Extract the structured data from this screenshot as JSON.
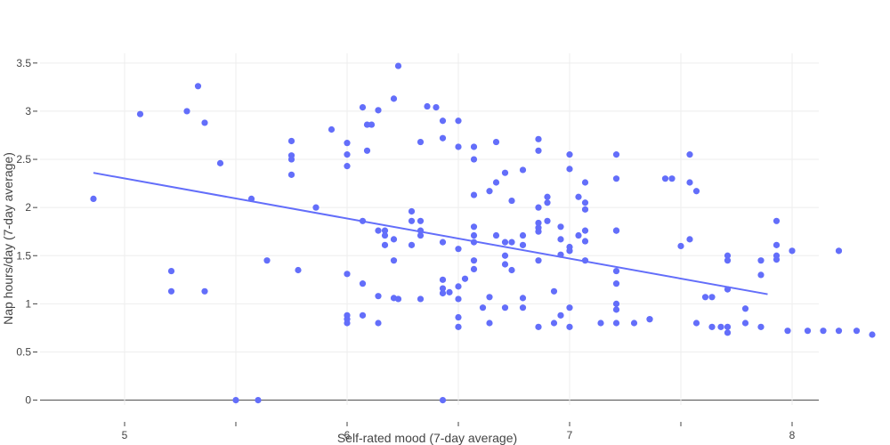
{
  "chart_data": {
    "type": "scatter",
    "title": "",
    "xlabel": "Self-rated mood (7-day average)",
    "ylabel": "Nap hours/day (7-day average)",
    "xlim": [
      4.62,
      8.12
    ],
    "ylim": [
      -0.05,
      3.6
    ],
    "grid": true,
    "legend": "none",
    "colors": {
      "points": "#636efa",
      "trend": "#636efa",
      "grid": "#eeeeee",
      "zero_line": "#444444",
      "text": "#444444"
    },
    "x_tick_labels": [
      {
        "value": 5,
        "label": "5"
      },
      {
        "value": 5.5,
        "label": ""
      },
      {
        "value": 6,
        "label": "6"
      },
      {
        "value": 6.5,
        "label": ""
      },
      {
        "value": 7,
        "label": "7"
      },
      {
        "value": 7.5,
        "label": ""
      },
      {
        "value": 8,
        "label": "8"
      }
    ],
    "y_tick_labels": [
      {
        "value": 0,
        "label": "0"
      },
      {
        "value": 0.5,
        "label": "0.5"
      },
      {
        "value": 1,
        "label": "1"
      },
      {
        "value": 1.5,
        "label": "1.5"
      },
      {
        "value": 2,
        "label": "2"
      },
      {
        "value": 2.5,
        "label": "2.5"
      },
      {
        "value": 3,
        "label": "3"
      },
      {
        "value": 3.5,
        "label": "3.5"
      }
    ],
    "trendline": {
      "x": [
        4.86,
        7.89
      ],
      "y": [
        2.36,
        1.1
      ]
    },
    "points": [
      [
        4.86,
        2.09
      ],
      [
        5.07,
        2.97
      ],
      [
        5.21,
        1.34
      ],
      [
        5.21,
        1.13
      ],
      [
        5.28,
        3.0
      ],
      [
        5.33,
        3.26
      ],
      [
        5.36,
        2.88
      ],
      [
        5.36,
        1.13
      ],
      [
        5.43,
        2.46
      ],
      [
        5.5,
        0.0
      ],
      [
        5.57,
        2.09
      ],
      [
        5.6,
        0.0
      ],
      [
        5.64,
        1.45
      ],
      [
        5.75,
        2.69
      ],
      [
        5.75,
        2.54
      ],
      [
        5.75,
        2.5
      ],
      [
        5.75,
        2.34
      ],
      [
        5.78,
        1.35
      ],
      [
        5.86,
        2.0
      ],
      [
        5.93,
        2.81
      ],
      [
        6.0,
        2.67
      ],
      [
        6.0,
        2.55
      ],
      [
        6.0,
        2.43
      ],
      [
        6.0,
        1.31
      ],
      [
        6.0,
        0.88
      ],
      [
        6.0,
        0.84
      ],
      [
        6.0,
        0.8
      ],
      [
        6.07,
        3.04
      ],
      [
        6.07,
        1.86
      ],
      [
        6.07,
        1.21
      ],
      [
        6.07,
        0.88
      ],
      [
        6.09,
        2.59
      ],
      [
        6.09,
        2.86
      ],
      [
        6.11,
        2.86
      ],
      [
        6.14,
        3.01
      ],
      [
        6.14,
        1.76
      ],
      [
        6.14,
        1.08
      ],
      [
        6.14,
        0.8
      ],
      [
        6.17,
        1.76
      ],
      [
        6.17,
        1.71
      ],
      [
        6.17,
        1.61
      ],
      [
        6.21,
        3.13
      ],
      [
        6.21,
        1.67
      ],
      [
        6.21,
        1.45
      ],
      [
        6.21,
        1.06
      ],
      [
        6.23,
        1.05
      ],
      [
        6.23,
        3.47
      ],
      [
        6.29,
        1.96
      ],
      [
        6.29,
        1.86
      ],
      [
        6.29,
        1.61
      ],
      [
        6.33,
        2.68
      ],
      [
        6.33,
        1.86
      ],
      [
        6.33,
        1.76
      ],
      [
        6.33,
        1.71
      ],
      [
        6.33,
        1.05
      ],
      [
        6.36,
        3.05
      ],
      [
        6.4,
        3.04
      ],
      [
        6.43,
        2.9
      ],
      [
        6.43,
        2.72
      ],
      [
        6.43,
        1.25
      ],
      [
        6.43,
        1.16
      ],
      [
        6.43,
        1.11
      ],
      [
        6.43,
        0.0
      ],
      [
        6.46,
        1.12
      ],
      [
        6.5,
        2.9
      ],
      [
        6.5,
        2.63
      ],
      [
        6.5,
        1.57
      ],
      [
        6.5,
        1.18
      ],
      [
        6.5,
        1.05
      ],
      [
        6.5,
        0.86
      ],
      [
        6.5,
        0.76
      ],
      [
        6.53,
        1.26
      ],
      [
        6.57,
        2.63
      ],
      [
        6.57,
        2.5
      ],
      [
        6.57,
        2.13
      ],
      [
        6.57,
        1.8
      ],
      [
        6.57,
        1.71
      ],
      [
        6.57,
        1.64
      ],
      [
        6.57,
        1.45
      ],
      [
        6.57,
        1.36
      ],
      [
        6.61,
        0.96
      ],
      [
        6.64,
        2.17
      ],
      [
        6.64,
        1.07
      ],
      [
        6.64,
        0.8
      ],
      [
        6.67,
        2.68
      ],
      [
        6.67,
        2.26
      ],
      [
        6.67,
        1.71
      ],
      [
        6.71,
        2.36
      ],
      [
        6.71,
        1.64
      ],
      [
        6.71,
        1.5
      ],
      [
        6.71,
        1.41
      ],
      [
        6.71,
        0.96
      ],
      [
        6.74,
        2.07
      ],
      [
        6.74,
        1.64
      ],
      [
        6.74,
        1.35
      ],
      [
        6.79,
        1.71
      ],
      [
        6.79,
        1.61
      ],
      [
        6.79,
        2.39
      ],
      [
        6.79,
        1.06
      ],
      [
        6.79,
        0.96
      ],
      [
        6.86,
        2.71
      ],
      [
        6.86,
        2.59
      ],
      [
        6.86,
        2.0
      ],
      [
        6.86,
        1.84
      ],
      [
        6.86,
        1.79
      ],
      [
        6.86,
        1.75
      ],
      [
        6.86,
        1.45
      ],
      [
        6.86,
        0.76
      ],
      [
        6.9,
        2.11
      ],
      [
        6.9,
        2.05
      ],
      [
        6.9,
        1.86
      ],
      [
        6.93,
        1.13
      ],
      [
        6.93,
        0.8
      ],
      [
        6.96,
        1.8
      ],
      [
        6.96,
        1.67
      ],
      [
        6.96,
        1.51
      ],
      [
        6.96,
        0.88
      ],
      [
        7.0,
        2.55
      ],
      [
        7.0,
        2.4
      ],
      [
        7.0,
        1.59
      ],
      [
        7.0,
        1.55
      ],
      [
        7.0,
        0.96
      ],
      [
        7.0,
        0.76
      ],
      [
        7.04,
        1.71
      ],
      [
        7.04,
        2.11
      ],
      [
        7.07,
        2.26
      ],
      [
        7.07,
        2.05
      ],
      [
        7.07,
        1.98
      ],
      [
        7.07,
        1.76
      ],
      [
        7.07,
        1.65
      ],
      [
        7.07,
        1.45
      ],
      [
        7.14,
        0.8
      ],
      [
        7.21,
        2.55
      ],
      [
        7.21,
        2.3
      ],
      [
        7.21,
        1.76
      ],
      [
        7.21,
        1.34
      ],
      [
        7.21,
        1.21
      ],
      [
        7.21,
        1.0
      ],
      [
        7.21,
        0.94
      ],
      [
        7.21,
        0.8
      ],
      [
        7.29,
        0.8
      ],
      [
        7.36,
        0.84
      ],
      [
        7.43,
        2.3
      ],
      [
        7.46,
        2.3
      ],
      [
        7.54,
        2.55
      ],
      [
        7.54,
        2.26
      ],
      [
        7.54,
        1.67
      ],
      [
        7.57,
        0.8
      ],
      [
        7.57,
        2.17
      ],
      [
        7.61,
        1.07
      ],
      [
        7.64,
        1.07
      ],
      [
        7.64,
        0.76
      ],
      [
        7.68,
        0.76
      ],
      [
        7.71,
        1.5
      ],
      [
        7.71,
        1.15
      ],
      [
        7.71,
        0.76
      ],
      [
        7.71,
        0.7
      ],
      [
        7.71,
        1.45
      ],
      [
        7.79,
        0.95
      ],
      [
        7.79,
        0.8
      ],
      [
        7.86,
        1.45
      ],
      [
        7.86,
        1.3
      ],
      [
        7.86,
        0.76
      ],
      [
        7.93,
        1.86
      ],
      [
        7.93,
        1.61
      ],
      [
        7.93,
        1.5
      ],
      [
        7.93,
        1.46
      ],
      [
        8.0,
        1.55
      ],
      [
        7.98,
        0.72
      ],
      [
        8.07,
        0.72
      ],
      [
        8.14,
        0.72
      ],
      [
        8.21,
        1.55
      ],
      [
        8.21,
        0.72
      ],
      [
        8.29,
        0.72
      ],
      [
        8.36,
        0.68
      ],
      [
        6.43,
        1.64
      ],
      [
        7.36,
        0.84
      ],
      [
        7.5,
        1.6
      ],
      [
        7.21,
        1.76
      ]
    ]
  }
}
